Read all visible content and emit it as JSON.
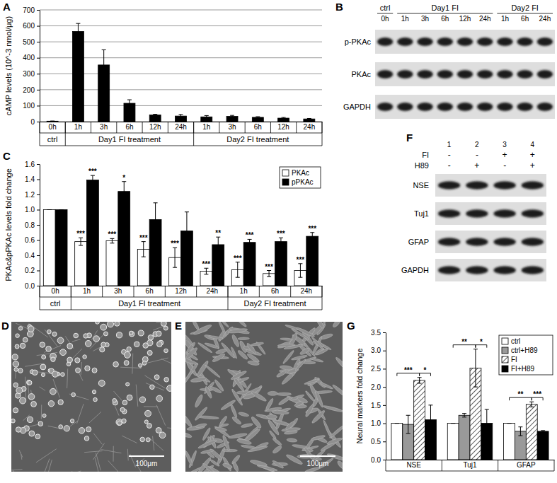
{
  "chart_data": [
    {
      "type": "bar",
      "title": "A",
      "ylabel": "cAMP levels (10^-3 nmol/μg)",
      "categories": [
        "0h",
        "1h",
        "3h",
        "6h",
        "12h",
        "24h",
        "1h",
        "3h",
        "6h",
        "12h",
        "24h"
      ],
      "groups": [
        {
          "label": "ctrl",
          "span": 1
        },
        {
          "label": "Day1 FI treatment",
          "span": 5
        },
        {
          "label": "Day2 FI treatment",
          "span": 5
        }
      ],
      "values": [
        3,
        565,
        355,
        115,
        42,
        35,
        30,
        33,
        27,
        22,
        17
      ],
      "errors": [
        1,
        50,
        95,
        22,
        4,
        10,
        8,
        6,
        4,
        4,
        3
      ],
      "color": "#000000",
      "ylim": [
        0,
        700
      ],
      "yticks": [
        0,
        100,
        200,
        300,
        400,
        500,
        600,
        700
      ],
      "grid": true
    },
    {
      "type": "bar",
      "title": "C",
      "ylabel": "PKAc&pPKAc levels fold change",
      "categories": [
        "0h",
        "1h",
        "3h",
        "6h",
        "12h",
        "24h",
        "1h",
        "6h",
        "24h"
      ],
      "groups": [
        {
          "label": "ctrl",
          "span": 1
        },
        {
          "label": "Day1 FI treatment",
          "span": 5
        },
        {
          "label": "Day2 FI treatment",
          "span": 3
        }
      ],
      "series": [
        {
          "name": "PKAc",
          "color": "#ffffff",
          "values": [
            1,
            0.58,
            0.59,
            0.48,
            0.37,
            0.19,
            0.21,
            0.16,
            0.2
          ],
          "errors": [
            0,
            0.05,
            0.03,
            0.1,
            0.13,
            0.04,
            0.1,
            0.04,
            0.09
          ],
          "annotations": [
            null,
            "***",
            "***",
            "***",
            "***",
            "***",
            "***",
            "***",
            "***"
          ]
        },
        {
          "name": "pPKAc",
          "color": "#000000",
          "values": [
            1,
            1.39,
            1.24,
            0.87,
            0.72,
            0.54,
            0.57,
            0.58,
            0.65
          ],
          "errors": [
            0,
            0.06,
            0.13,
            0.22,
            0.25,
            0.1,
            0.04,
            0.05,
            0.05
          ],
          "annotations": [
            null,
            "***",
            "*",
            null,
            null,
            "**",
            "***",
            "***",
            "***"
          ]
        }
      ],
      "ylim": [
        0,
        1.6
      ],
      "yticks": [
        {
          "value": 0,
          "label": "0.0"
        },
        0.2,
        0.4,
        0.6,
        0.8,
        {
          "value": 1,
          "label": "1.0"
        },
        1.2,
        1.4,
        1.6
      ],
      "grid": false,
      "legend": "upper right"
    },
    {
      "type": "bar",
      "title": "G",
      "ylabel": "Neural markers fold change",
      "categories": [
        "NSE",
        "Tuj1",
        "GFAP"
      ],
      "series": [
        {
          "name": "ctrl",
          "color": "#ffffff",
          "values": [
            1,
            1,
            1
          ],
          "errors": [
            0,
            0,
            0
          ]
        },
        {
          "name": "ctrl+H89",
          "color": "#999999",
          "values": [
            0.97,
            1.22,
            0.78
          ],
          "errors": [
            0.25,
            0.05,
            0.12
          ]
        },
        {
          "name": "FI",
          "color": "#ffffff",
          "marker": "hatch",
          "values": [
            2.18,
            2.52,
            1.52
          ],
          "errors": [
            0.08,
            0.52,
            0.07
          ]
        },
        {
          "name": "FI+H89",
          "color": "#000000",
          "values": [
            1.1,
            1,
            0.78
          ],
          "errors": [
            0.4,
            0.38,
            0.02
          ]
        }
      ],
      "comparisons": [
        {
          "category": 0,
          "series": [
            0,
            2
          ],
          "label": "***"
        },
        {
          "category": 0,
          "series": [
            2,
            3
          ],
          "label": "*"
        },
        {
          "category": 1,
          "series": [
            0,
            2
          ],
          "label": "**"
        },
        {
          "category": 1,
          "series": [
            2,
            3
          ],
          "label": "*"
        },
        {
          "category": 2,
          "series": [
            0,
            2
          ],
          "label": "**"
        },
        {
          "category": 2,
          "series": [
            2,
            3
          ],
          "label": "***"
        }
      ],
      "ylim": [
        0,
        3.5
      ],
      "yticks": [
        {
          "value": 0,
          "label": "0.0"
        },
        0.5,
        {
          "value": 1,
          "label": "1.0"
        },
        1.5,
        {
          "value": 2,
          "label": "2.0"
        },
        2.5,
        {
          "value": 3,
          "label": "3.0"
        },
        3.5
      ],
      "grid": false,
      "legend": "upper right"
    }
  ],
  "blots": [
    {
      "title": "B",
      "groups": [
        {
          "label": "ctrl",
          "span": 1
        },
        {
          "label": "Day1 FI",
          "span": 5
        },
        {
          "label": "Day2 FI",
          "span": 3
        }
      ],
      "lanes": [
        "0h",
        "1h",
        "3h",
        "6h",
        "12h",
        "24h",
        "1h",
        "6h",
        "24h"
      ],
      "rows": [
        "p-PKAc",
        "PKAc",
        "GAPDH"
      ]
    },
    {
      "title": "F",
      "lanes": [
        "1",
        "2",
        "3",
        "4"
      ],
      "conditions": [
        {
          "label": "FI",
          "values": [
            "-",
            "-",
            "+",
            "+"
          ]
        },
        {
          "label": "H89",
          "values": [
            "-",
            "+",
            "-",
            "+"
          ]
        }
      ],
      "rows": [
        "NSE",
        "Tuj1",
        "GFAP",
        "GAPDH"
      ]
    }
  ],
  "images": [
    {
      "title": "D",
      "scale_bar": "100μm"
    },
    {
      "title": "E",
      "scale_bar": "100μm"
    }
  ]
}
